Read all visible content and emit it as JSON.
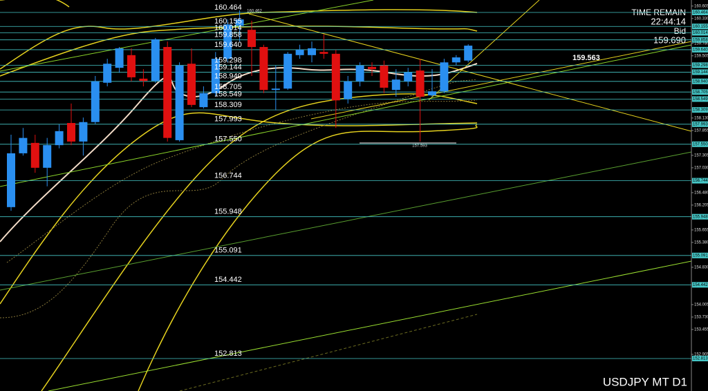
{
  "chart_data": {
    "type": "candlestick",
    "symbol": "USDJPY MT D1",
    "time_remain_label": "TIME REMAIN",
    "time_remain": "22:44:14",
    "bid_label": "Bid",
    "bid": "159.690",
    "price_annotation": "159.563",
    "high_annotation": "160.462",
    "low_annotation": "157.593",
    "up_color": "#2a8ff0",
    "down_color": "#e01010",
    "level_color": "#46c8c8",
    "ylim": [
      152.095,
      160.739
    ],
    "yticks": [
      {
        "value": 160.605,
        "label": "160.605"
      },
      {
        "value": 160.33,
        "label": "160.330"
      },
      {
        "value": 159.78,
        "label": "159.780"
      },
      159.505,
      {
        "value": 158.13,
        "label": "158.130"
      },
      157.855,
      157.305,
      {
        "value": 157.03,
        "label": "157.030"
      },
      {
        "value": 156.48,
        "label": "156.480"
      },
      156.205,
      155.655,
      {
        "value": 155.38,
        "label": "155.380"
      },
      {
        "value": 154.83,
        "label": "154.830"
      },
      154.005,
      {
        "value": 153.73,
        "label": "153.730"
      },
      153.455,
      152.905
    ],
    "levels": [
      160.464,
      160.155,
      160.014,
      159.858,
      {
        "value": 159.64,
        "label": "159.640"
      },
      159.298,
      159.144,
      {
        "value": 158.94,
        "label": "158.940"
      },
      158.705,
      158.549,
      158.309,
      157.993,
      {
        "value": 157.55,
        "label": "157.550"
      },
      156.744,
      155.948,
      155.091,
      154.442,
      152.813
    ],
    "open": [
      156.16,
      157.35,
      157.58,
      157.03,
      157.53,
      158.02,
      157.61,
      158.04,
      158.91,
      159.24,
      159.52,
      159.0,
      158.95,
      159.7,
      157.64,
      159.33,
      158.37,
      158.68,
      159.44,
      160.17,
      160.08,
      159.7,
      158.75,
      158.78,
      159.52,
      159.52,
      159.59,
      159.55,
      158.55,
      158.94,
      159.26,
      159.29,
      158.75,
      158.94,
      159.18,
      158.63,
      158.72,
      159.36,
      159.4
    ],
    "high": [
      157.76,
      157.91,
      157.76,
      157.69,
      157.99,
      158.45,
      158.14,
      159.06,
      159.44,
      159.7,
      159.67,
      159.21,
      159.9,
      159.82,
      159.36,
      159.67,
      158.83,
      159.59,
      160.31,
      160.51,
      160.28,
      159.75,
      159.29,
      159.59,
      159.75,
      159.82,
      159.98,
      159.64,
      159.06,
      159.36,
      159.36,
      159.4,
      159.21,
      159.24,
      159.44,
      159.21,
      159.44,
      159.52,
      159.76
    ],
    "low": [
      156.08,
      157.3,
      156.92,
      156.62,
      157.46,
      157.53,
      157.3,
      157.99,
      158.83,
      159.13,
      158.94,
      158.83,
      158.91,
      157.61,
      157.61,
      158.37,
      158.34,
      158.6,
      159.36,
      159.82,
      159.06,
      158.68,
      158.3,
      158.75,
      159.44,
      159.36,
      159.44,
      157.91,
      158.45,
      158.83,
      159.06,
      158.68,
      158.6,
      158.83,
      157.61,
      158.6,
      158.68,
      159.29,
      159.36
    ],
    "close": [
      157.35,
      157.69,
      157.03,
      157.53,
      157.84,
      157.61,
      158.04,
      158.94,
      159.33,
      159.67,
      159.03,
      158.95,
      159.87,
      157.69,
      159.29,
      158.42,
      158.68,
      159.44,
      160.2,
      160.31,
      159.7,
      158.75,
      158.78,
      159.55,
      159.64,
      159.67,
      159.55,
      158.52,
      158.94,
      159.29,
      159.21,
      158.8,
      158.98,
      159.14,
      158.6,
      158.72,
      159.36,
      159.47,
      159.73
    ]
  }
}
